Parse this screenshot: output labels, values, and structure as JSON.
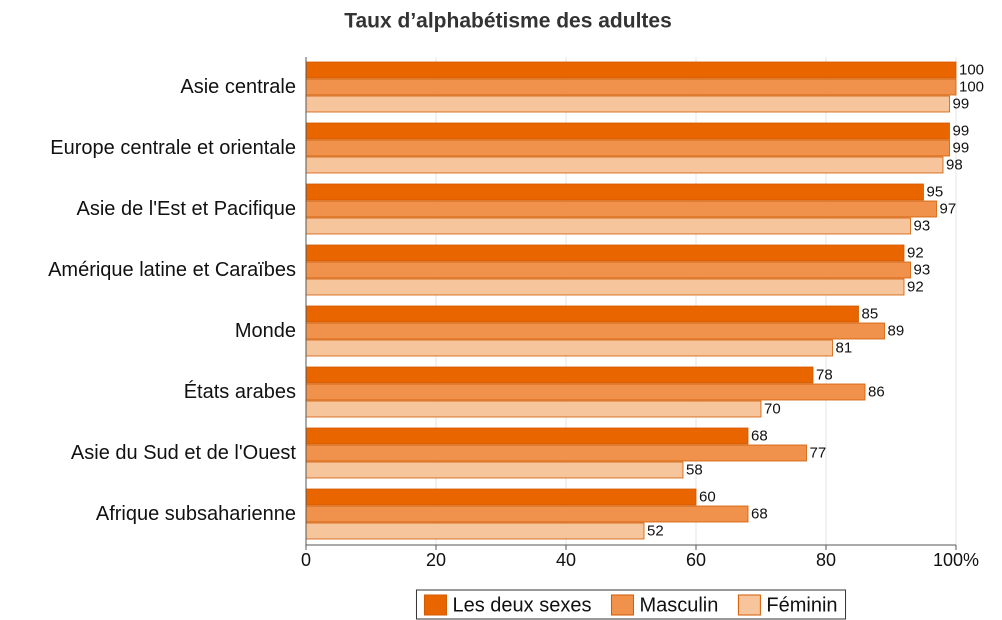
{
  "chart_data": {
    "type": "hbar",
    "title": "Taux d’alphabétisme des adultes",
    "categories": [
      "Asie centrale",
      "Europe centrale et orientale",
      "Asie de l'Est et Pacifique",
      "Amérique latine et Caraïbes",
      "Monde",
      "États arabes",
      "Asie du Sud et de l'Ouest",
      "Afrique subsaharienne"
    ],
    "series": [
      {
        "name": "Les deux sexes",
        "color": "#e86500",
        "values": [
          100,
          99,
          95,
          92,
          85,
          78,
          68,
          60
        ]
      },
      {
        "name": "Masculin",
        "color": "#f0924c",
        "values": [
          100,
          99,
          97,
          93,
          89,
          86,
          77,
          68
        ]
      },
      {
        "name": "Féminin",
        "color": "#f7c59c",
        "values": [
          99,
          98,
          93,
          92,
          81,
          70,
          58,
          52
        ]
      }
    ],
    "xlim": [
      0,
      100
    ],
    "xticks": [
      0,
      20,
      40,
      60,
      80,
      {
        "value": 100,
        "label": "100%"
      }
    ],
    "grid": true
  }
}
